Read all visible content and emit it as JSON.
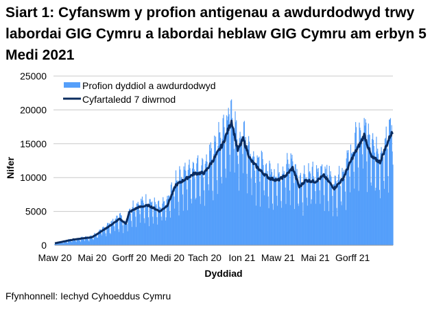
{
  "chart_data": {
    "type": "bar",
    "title": "Siart 1: Cyfanswm y profion antigenau a awdurdodwyd trwy labordai GIG Cymru a labordai heblaw GIG Cymru am erbyn 5 Medi 2021",
    "xlabel": "Dyddiad",
    "ylabel": "Nifer",
    "ylim": [
      0,
      25000
    ],
    "yticks": [
      "0",
      "5000",
      "10000",
      "15000",
      "20000",
      "25000"
    ],
    "xticks": [
      "Maw 20",
      "Mai 20",
      "Gorff 20",
      "Medi 20",
      "Tach 20",
      "Ion 21",
      "Maw 21",
      "Mai 21",
      "Gorff 21"
    ],
    "start_date": "2020-03-01",
    "end_date": "2021-09-05",
    "legend": [
      "Profion dyddiol a awdurdodwyd",
      "Cyfartaledd 7 diwrnod"
    ],
    "legend_position": "top-left",
    "colors": {
      "bars": "#559ffa",
      "line": "#0b2c5f",
      "grid": "#c8c8c8"
    },
    "weekday_factors": [
      1.15,
      1.2,
      1.15,
      1.1,
      1.05,
      0.75,
      0.6
    ],
    "seven_day_average": [
      [
        "2020-03-01",
        300
      ],
      [
        "2020-04-01",
        850
      ],
      [
        "2020-05-01",
        1200
      ],
      [
        "2020-05-15",
        2000
      ],
      [
        "2020-06-01",
        3000
      ],
      [
        "2020-06-15",
        3900
      ],
      [
        "2020-06-25",
        3200
      ],
      [
        "2020-07-01",
        4900
      ],
      [
        "2020-07-15",
        5600
      ],
      [
        "2020-08-01",
        5900
      ],
      [
        "2020-08-20",
        5000
      ],
      [
        "2020-09-01",
        5900
      ],
      [
        "2020-09-15",
        8900
      ],
      [
        "2020-10-01",
        9800
      ],
      [
        "2020-10-15",
        10600
      ],
      [
        "2020-11-01",
        10700
      ],
      [
        "2020-11-15",
        12600
      ],
      [
        "2020-12-01",
        15000
      ],
      [
        "2020-12-15",
        18400
      ],
      [
        "2020-12-25",
        14000
      ],
      [
        "2021-01-03",
        15700
      ],
      [
        "2021-01-15",
        12600
      ],
      [
        "2021-02-01",
        10950
      ],
      [
        "2021-02-15",
        9900
      ],
      [
        "2021-03-01",
        9600
      ],
      [
        "2021-03-15",
        10400
      ],
      [
        "2021-03-25",
        11450
      ],
      [
        "2021-04-05",
        8600
      ],
      [
        "2021-04-15",
        9600
      ],
      [
        "2021-05-01",
        9400
      ],
      [
        "2021-05-15",
        10300
      ],
      [
        "2021-06-01",
        8400
      ],
      [
        "2021-06-15",
        9800
      ],
      [
        "2021-07-01",
        13000
      ],
      [
        "2021-07-15",
        15300
      ],
      [
        "2021-07-20",
        16300
      ],
      [
        "2021-08-01",
        13000
      ],
      [
        "2021-08-15",
        12300
      ],
      [
        "2021-09-01",
        16300
      ],
      [
        "2021-09-05",
        16700
      ]
    ]
  },
  "source": "Ffynhonnell: Iechyd Cyhoeddus Cymru"
}
